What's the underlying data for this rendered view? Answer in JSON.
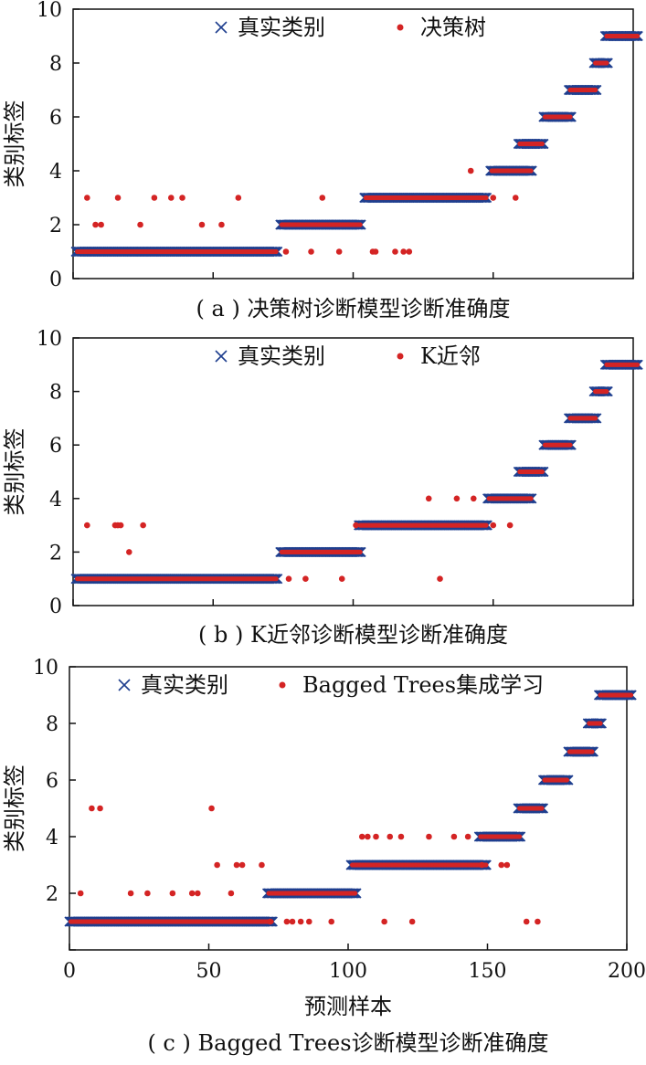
{
  "colors": {
    "true_class": "#1f3f8f",
    "predicted": "#d42424",
    "axis": "#111111"
  },
  "xlabel": "预测样本",
  "chart_data": [
    {
      "type": "scatter",
      "panel": "a",
      "caption": "( a ) 决策树诊断模型诊断准确度",
      "ylabel": "类别标签",
      "xlim": [
        0,
        200
      ],
      "ylim": [
        0,
        10
      ],
      "yticks": [
        "0",
        "2",
        "4",
        "6",
        "8",
        "10"
      ],
      "xtick_values": [
        0,
        50,
        100,
        150,
        200
      ],
      "xtick_labels_shown": false,
      "legend": {
        "placement": "top",
        "entries": [
          "真实类别",
          "决策树"
        ]
      },
      "true_segments": [
        {
          "class": 1,
          "x_start": 1,
          "x_end": 73
        },
        {
          "class": 2,
          "x_start": 74,
          "x_end": 103
        },
        {
          "class": 3,
          "x_start": 104,
          "x_end": 148
        },
        {
          "class": 4,
          "x_start": 149,
          "x_end": 164
        },
        {
          "class": 5,
          "x_start": 159,
          "x_end": 168
        },
        {
          "class": 6,
          "x_start": 168,
          "x_end": 178
        },
        {
          "class": 7,
          "x_start": 177,
          "x_end": 187
        },
        {
          "class": 8,
          "x_start": 186,
          "x_end": 191
        },
        {
          "class": 9,
          "x_start": 190,
          "x_end": 202
        }
      ],
      "misclassified": [
        {
          "x": 5,
          "y": 3
        },
        {
          "x": 8,
          "y": 2
        },
        {
          "x": 10,
          "y": 2
        },
        {
          "x": 16,
          "y": 3
        },
        {
          "x": 24,
          "y": 2
        },
        {
          "x": 29,
          "y": 3
        },
        {
          "x": 35,
          "y": 3
        },
        {
          "x": 39,
          "y": 3
        },
        {
          "x": 46,
          "y": 2
        },
        {
          "x": 53,
          "y": 2
        },
        {
          "x": 59,
          "y": 3
        },
        {
          "x": 76,
          "y": 1
        },
        {
          "x": 85,
          "y": 1
        },
        {
          "x": 89,
          "y": 3
        },
        {
          "x": 95,
          "y": 1
        },
        {
          "x": 107,
          "y": 1
        },
        {
          "x": 108,
          "y": 1
        },
        {
          "x": 115,
          "y": 1
        },
        {
          "x": 118,
          "y": 1
        },
        {
          "x": 120,
          "y": 1
        },
        {
          "x": 142,
          "y": 4
        },
        {
          "x": 150,
          "y": 3
        },
        {
          "x": 158,
          "y": 3
        }
      ]
    },
    {
      "type": "scatter",
      "panel": "b",
      "caption": "( b ) K近邻诊断模型诊断准确度",
      "ylabel": "类别标签",
      "xlim": [
        0,
        200
      ],
      "ylim": [
        0,
        10
      ],
      "yticks": [
        "0",
        "2",
        "4",
        "6",
        "8",
        "10"
      ],
      "xtick_values": [
        0,
        50,
        100,
        150,
        200
      ],
      "xtick_labels_shown": false,
      "legend": {
        "placement": "top",
        "entries": [
          "真实类别",
          "K近邻"
        ]
      },
      "true_segments": [
        {
          "class": 1,
          "x_start": 1,
          "x_end": 73
        },
        {
          "class": 2,
          "x_start": 74,
          "x_end": 103
        },
        {
          "class": 3,
          "x_start": 102,
          "x_end": 148
        },
        {
          "class": 4,
          "x_start": 148,
          "x_end": 164
        },
        {
          "class": 5,
          "x_start": 159,
          "x_end": 168
        },
        {
          "class": 6,
          "x_start": 168,
          "x_end": 178
        },
        {
          "class": 7,
          "x_start": 177,
          "x_end": 187
        },
        {
          "class": 8,
          "x_start": 186,
          "x_end": 191
        },
        {
          "class": 9,
          "x_start": 190,
          "x_end": 202
        }
      ],
      "misclassified": [
        {
          "x": 5,
          "y": 3
        },
        {
          "x": 15,
          "y": 3
        },
        {
          "x": 16,
          "y": 3
        },
        {
          "x": 17,
          "y": 3
        },
        {
          "x": 20,
          "y": 2
        },
        {
          "x": 25,
          "y": 3
        },
        {
          "x": 77,
          "y": 1
        },
        {
          "x": 83,
          "y": 1
        },
        {
          "x": 96,
          "y": 1
        },
        {
          "x": 101,
          "y": 3
        },
        {
          "x": 127,
          "y": 4
        },
        {
          "x": 131,
          "y": 1
        },
        {
          "x": 137,
          "y": 4
        },
        {
          "x": 143,
          "y": 4
        },
        {
          "x": 150,
          "y": 3
        },
        {
          "x": 156,
          "y": 3
        }
      ]
    },
    {
      "type": "scatter",
      "panel": "c",
      "caption": "( c ) Bagged Trees诊断模型诊断准确度",
      "ylabel": "类别标签",
      "xlim": [
        0,
        200
      ],
      "ylim": [
        0,
        10
      ],
      "yticks": [
        "",
        "2",
        "4",
        "6",
        "8",
        "10"
      ],
      "xtick_values": [
        0,
        50,
        100,
        150,
        200
      ],
      "xtick_labels": [
        "0",
        "50",
        "100",
        "150",
        "200"
      ],
      "xtick_labels_shown": true,
      "legend": {
        "placement": "top",
        "entries": [
          "真实类别",
          "Bagged Trees集成学习"
        ]
      },
      "true_segments": [
        {
          "class": 1,
          "x_start": 0,
          "x_end": 73
        },
        {
          "class": 2,
          "x_start": 71,
          "x_end": 103
        },
        {
          "class": 3,
          "x_start": 101,
          "x_end": 150
        },
        {
          "class": 4,
          "x_start": 147,
          "x_end": 162
        },
        {
          "class": 5,
          "x_start": 161,
          "x_end": 170
        },
        {
          "class": 6,
          "x_start": 170,
          "x_end": 179
        },
        {
          "class": 7,
          "x_start": 179,
          "x_end": 188
        },
        {
          "class": 8,
          "x_start": 186,
          "x_end": 191
        },
        {
          "class": 9,
          "x_start": 190,
          "x_end": 202
        }
      ],
      "misclassified": [
        {
          "x": 4,
          "y": 2
        },
        {
          "x": 8,
          "y": 5
        },
        {
          "x": 11,
          "y": 5
        },
        {
          "x": 22,
          "y": 2
        },
        {
          "x": 28,
          "y": 2
        },
        {
          "x": 37,
          "y": 2
        },
        {
          "x": 44,
          "y": 2
        },
        {
          "x": 46,
          "y": 2
        },
        {
          "x": 51,
          "y": 5
        },
        {
          "x": 53,
          "y": 3
        },
        {
          "x": 58,
          "y": 2
        },
        {
          "x": 60,
          "y": 3
        },
        {
          "x": 62,
          "y": 3
        },
        {
          "x": 69,
          "y": 3
        },
        {
          "x": 72,
          "y": 1
        },
        {
          "x": 78,
          "y": 1
        },
        {
          "x": 80,
          "y": 1
        },
        {
          "x": 83,
          "y": 1
        },
        {
          "x": 86,
          "y": 1
        },
        {
          "x": 94,
          "y": 1
        },
        {
          "x": 105,
          "y": 4
        },
        {
          "x": 107,
          "y": 4
        },
        {
          "x": 110,
          "y": 4
        },
        {
          "x": 113,
          "y": 1
        },
        {
          "x": 115,
          "y": 4
        },
        {
          "x": 119,
          "y": 4
        },
        {
          "x": 123,
          "y": 1
        },
        {
          "x": 129,
          "y": 4
        },
        {
          "x": 138,
          "y": 4
        },
        {
          "x": 143,
          "y": 4
        },
        {
          "x": 148,
          "y": 3
        },
        {
          "x": 155,
          "y": 3
        },
        {
          "x": 157,
          "y": 3
        },
        {
          "x": 164,
          "y": 1
        },
        {
          "x": 168,
          "y": 1
        }
      ]
    }
  ]
}
